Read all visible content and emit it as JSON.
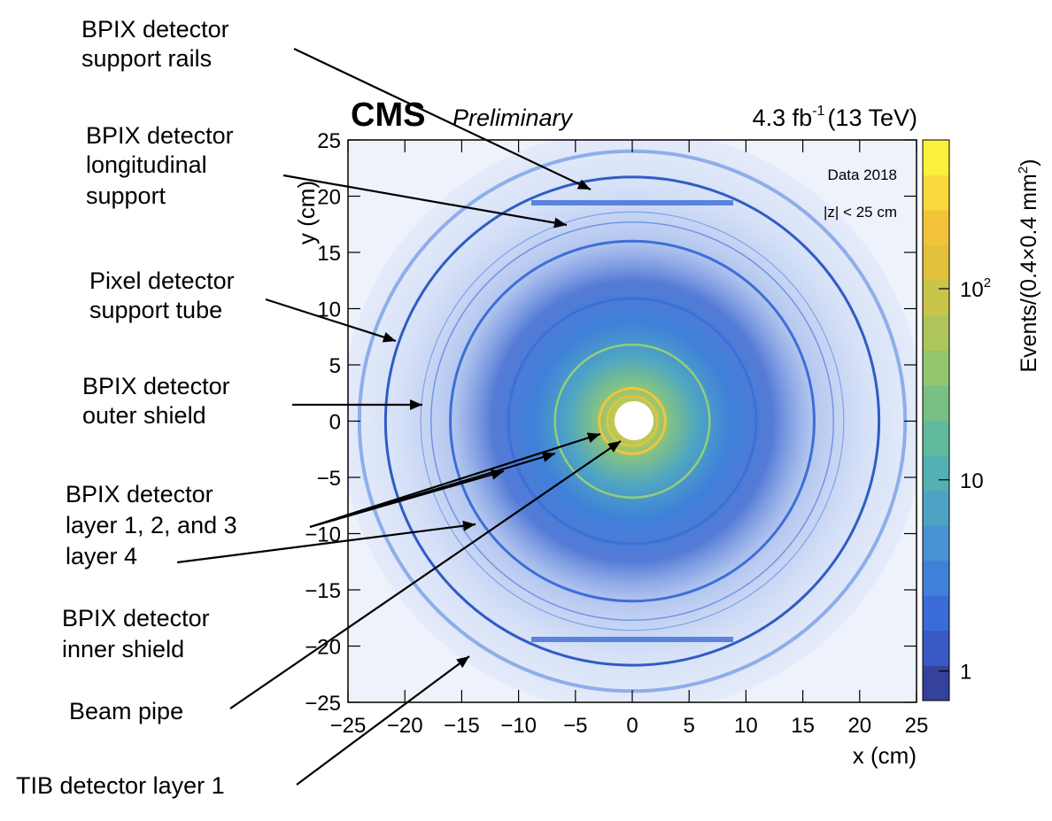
{
  "header": {
    "experiment": "CMS",
    "status": "Preliminary",
    "lumi": "4.3 fb",
    "lumi_exp": "-1",
    "energy": "(13 TeV)"
  },
  "legend": {
    "dataset": "Data 2018",
    "cut": "|z| < 25 cm"
  },
  "annotations": [
    [
      "BPIX detector",
      "support rails"
    ],
    [
      "BPIX detector",
      "longitudinal",
      "support"
    ],
    [
      "Pixel detector",
      "support tube"
    ],
    [
      "BPIX detector",
      "outer shield"
    ],
    [
      "BPIX detector",
      "layer 1, 2, and 3"
    ],
    [
      "layer 4"
    ],
    [
      "BPIX detector",
      "inner shield"
    ],
    [
      "Beam pipe"
    ],
    [
      "TIB detector layer 1"
    ]
  ],
  "colorbar": {
    "label": "Events/(0.4×0.4 mm",
    "label_exp": "2",
    "label_close": ")",
    "ticks": [
      {
        "value": 1,
        "text": "1"
      },
      {
        "value": 10,
        "text": "10"
      },
      {
        "value": 100,
        "text": "10",
        "exp": "2"
      }
    ],
    "colors": [
      "#35419a",
      "#3a58c4",
      "#3b6bd6",
      "#3f80da",
      "#4a93d2",
      "#4ea3c4",
      "#54b0b2",
      "#62ba9e",
      "#79c086",
      "#93c46e",
      "#aec55b",
      "#c9c44a",
      "#e1c03e",
      "#f2c33a",
      "#f8d83a",
      "#fbf03a"
    ]
  },
  "chart_data": {
    "type": "heatmap",
    "title": "",
    "xlabel": "x (cm)",
    "ylabel": "y (cm)",
    "xlim": [
      -25,
      25
    ],
    "ylim": [
      -25,
      25
    ],
    "x_ticks": [
      "−25",
      "−20",
      "−15",
      "−10",
      "−5",
      "0",
      "5",
      "10",
      "15",
      "20",
      "25"
    ],
    "y_ticks": [
      "25",
      "20",
      "15",
      "10",
      "5",
      "0",
      "−5",
      "−10",
      "−15",
      "−20",
      "−25"
    ],
    "x_tick_values": [
      -25,
      -20,
      -15,
      -10,
      -5,
      0,
      5,
      10,
      15,
      20,
      25
    ],
    "y_tick_values": [
      25,
      20,
      15,
      10,
      5,
      0,
      -5,
      -10,
      -15,
      -20,
      -25
    ],
    "z_scale": "log",
    "zlim": [
      0.7,
      600
    ],
    "rings": [
      {
        "name": "Beam pipe",
        "radius": 2.2,
        "color": "#e3c640",
        "width": 2
      },
      {
        "name": "BPIX layer 1",
        "radius": 2.9,
        "color": "#f0c63a",
        "width": 3
      },
      {
        "name": "BPIX layer 2",
        "radius": 6.8,
        "color": "#8fcf7a",
        "width": 2.5
      },
      {
        "name": "BPIX layer 3",
        "radius": 10.9,
        "color": "#3d6fd8",
        "width": 3
      },
      {
        "name": "BPIX layer 4",
        "radius": 16.0,
        "color": "#3d6fd8",
        "width": 3
      },
      {
        "name": "BPIX inner shield",
        "radius": 17.7,
        "color": "#6f96e4",
        "width": 1.5
      },
      {
        "name": "BPIX outer shield",
        "radius": 18.6,
        "color": "#7fa3e8",
        "width": 1.2
      },
      {
        "name": "Pixel support tube",
        "radius": 21.7,
        "color": "#2f5cc4",
        "width": 3
      },
      {
        "name": "TIB layer 1",
        "radius": 24.0,
        "color": "#8daeea",
        "width": 4
      }
    ]
  }
}
